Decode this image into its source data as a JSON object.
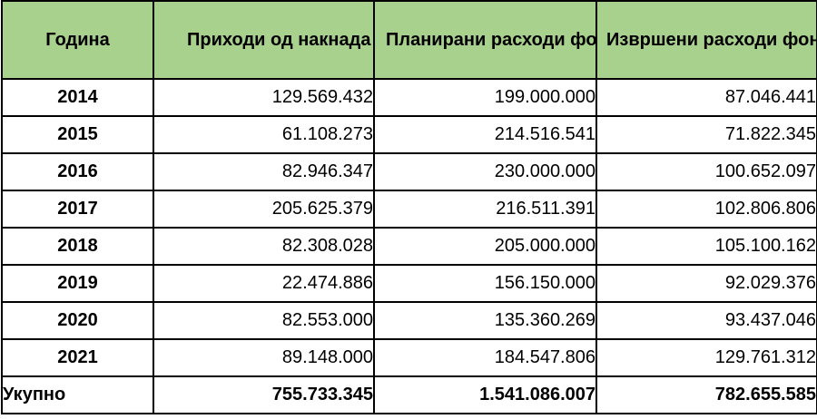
{
  "headers": [
    "Година",
    "Приходи од накнада",
    "Планирани расходи фонда",
    "Извршени расходи фонда"
  ],
  "rows": [
    {
      "year": "2014",
      "income": "129.569.432",
      "planned": "199.000.000",
      "executed": "87.046.441"
    },
    {
      "year": "2015",
      "income": "61.108.273",
      "planned": "214.516.541",
      "executed": "71.822.345"
    },
    {
      "year": "2016",
      "income": "82.946.347",
      "planned": "230.000.000",
      "executed": "100.652.097"
    },
    {
      "year": "2017",
      "income": "205.625.379",
      "planned": "216.511.391",
      "executed": "102.806.806"
    },
    {
      "year": "2018",
      "income": "82.308.028",
      "planned": "205.000.000",
      "executed": "105.100.162"
    },
    {
      "year": "2019",
      "income": "22.474.886",
      "planned": "156.150.000",
      "executed": "92.029.376"
    },
    {
      "year": "2020",
      "income": "82.553.000",
      "planned": "135.360.269",
      "executed": "93.437.046"
    },
    {
      "year": "2021",
      "income": "89.148.000",
      "planned": "184.547.806",
      "executed": "129.761.312"
    }
  ],
  "total": {
    "label": "Укупно",
    "income": "755.733.345",
    "planned": "1.541.086.007",
    "executed": "782.655.585"
  },
  "colors": {
    "header_bg": "#a9d18e",
    "border": "#000000"
  }
}
